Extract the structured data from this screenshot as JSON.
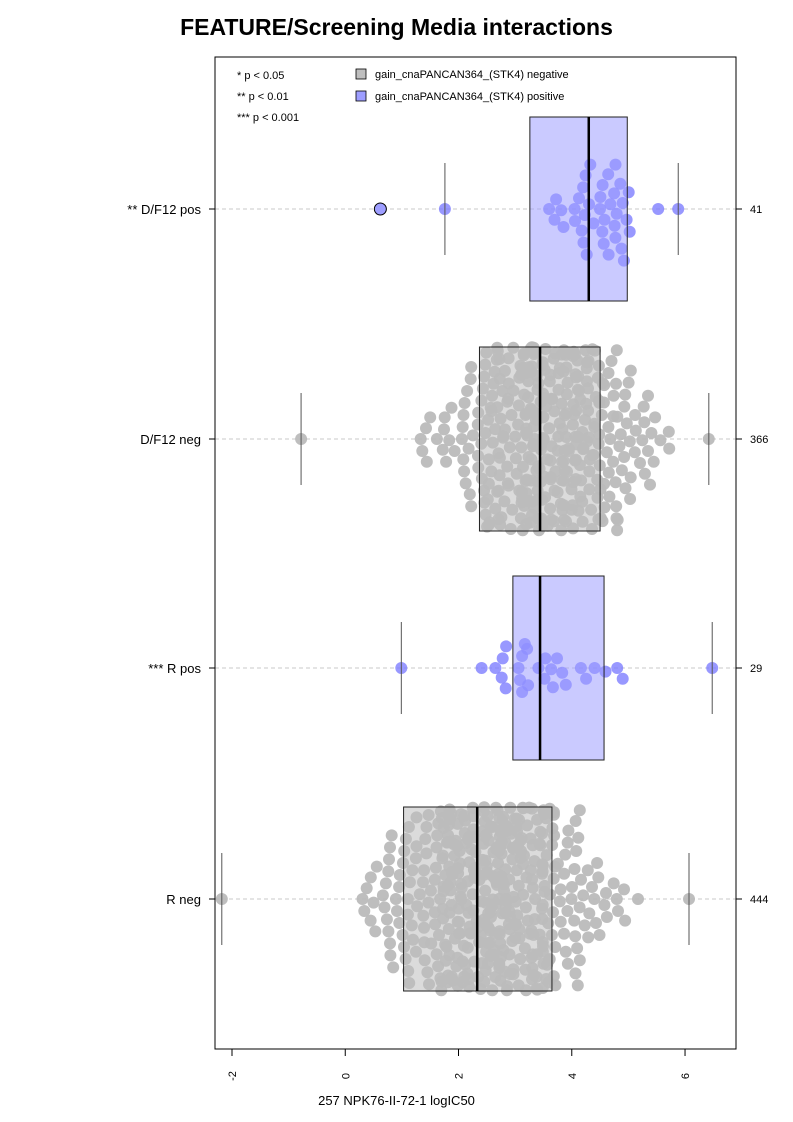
{
  "chart_data": {
    "type": "beeswarm-boxplot",
    "title": "FEATURE/Screening Media interactions",
    "xlabel": "257 NPK76-II-72-1 logIC50",
    "xlim": [
      -2.3,
      6.9
    ],
    "xticks": [
      -2,
      0,
      2,
      4,
      6
    ],
    "orientation": "horizontal",
    "significance_legend": [
      "* p < 0.05",
      "** p < 0.01",
      "*** p < 0.001"
    ],
    "legend": [
      {
        "label": "gain_cnaPANCAN364_(STK4) negative",
        "color": "#bebebe"
      },
      {
        "label": "gain_cnaPANCAN364_(STK4) positive",
        "color": "#9e9eff"
      }
    ],
    "groups": [
      {
        "label": "** D/F12 pos",
        "n": "41",
        "group": "positive",
        "box": {
          "whisker_low": 1.76,
          "q1": 3.26,
          "median": 4.3,
          "q3": 4.98,
          "whisker_high": 5.88
        },
        "outliers": [
          0.62
        ],
        "range": [
          1.76,
          5.88
        ],
        "peak": 4.4,
        "width": 0.68
      },
      {
        "label": "D/F12 neg",
        "n": "366",
        "group": "negative",
        "box": {
          "whisker_low": -0.78,
          "q1": 2.37,
          "median": 3.44,
          "q3": 4.5,
          "whisker_high": 6.42
        },
        "outliers": [],
        "range": [
          -0.78,
          6.42
        ],
        "peak": 3.6,
        "width": 1.0
      },
      {
        "label": "*** R pos",
        "n": "29",
        "group": "positive",
        "box": {
          "whisker_low": 0.99,
          "q1": 2.96,
          "median": 3.44,
          "q3": 4.57,
          "whisker_high": 6.48
        },
        "outliers": [],
        "range": [
          0.99,
          6.48
        ],
        "peak": 3.4,
        "width": 0.3
      },
      {
        "label": "R neg",
        "n": "444",
        "group": "negative",
        "box": {
          "whisker_low": -2.18,
          "q1": 1.03,
          "median": 2.33,
          "q3": 3.65,
          "whisker_high": 6.07
        },
        "outliers": [],
        "range": [
          -2.18,
          6.07
        ],
        "peak": 2.5,
        "width": 1.0
      }
    ]
  },
  "colors": {
    "negative_point": "#bbbbbb",
    "positive_point": "#7b7bff",
    "negative_box": "#bebebe",
    "positive_box": "#9e9eff"
  }
}
